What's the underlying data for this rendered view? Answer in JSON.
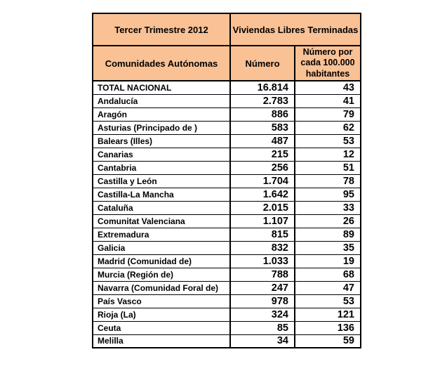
{
  "table": {
    "header": {
      "period": "Tercer Trimestre 2012",
      "measure": "Viviendas Libres Terminadas",
      "col_region": "Comunidades Autónomas",
      "col_numero": "Número",
      "col_per100k": "Número por cada 100.000 habitantes"
    },
    "colors": {
      "header_bg": "#FAC195",
      "region_bg": "#CCFFFF",
      "cell_bg": "#FFFFFF",
      "border": "#000000",
      "text": "#000000"
    },
    "rows": [
      {
        "region": "TOTAL NACIONAL",
        "numero": "16.814",
        "per100k": "43"
      },
      {
        "region": "Andalucía",
        "numero": "2.783",
        "per100k": "41"
      },
      {
        "region": "Aragón",
        "numero": "886",
        "per100k": "79"
      },
      {
        "region": "Asturias (Principado de )",
        "numero": "583",
        "per100k": "62"
      },
      {
        "region": "Balears (Illes)",
        "numero": "487",
        "per100k": "53"
      },
      {
        "region": "Canarias",
        "numero": "215",
        "per100k": "12"
      },
      {
        "region": "Cantabria",
        "numero": "256",
        "per100k": "51"
      },
      {
        "region": "Castilla y León",
        "numero": "1.704",
        "per100k": "78"
      },
      {
        "region": "Castilla-La Mancha",
        "numero": "1.642",
        "per100k": "95"
      },
      {
        "region": "Cataluña",
        "numero": "2.015",
        "per100k": "33"
      },
      {
        "region": "Comunitat Valenciana",
        "numero": "1.107",
        "per100k": "26"
      },
      {
        "region": "Extremadura",
        "numero": "815",
        "per100k": "89"
      },
      {
        "region": "Galicia",
        "numero": "832",
        "per100k": "35"
      },
      {
        "region": "Madrid (Comunidad de)",
        "numero": "1.033",
        "per100k": "19"
      },
      {
        "region": "Murcia (Región de)",
        "numero": "788",
        "per100k": "68"
      },
      {
        "region": "Navarra (Comunidad Foral de)",
        "numero": "247",
        "per100k": "47"
      },
      {
        "region": "País Vasco",
        "numero": "978",
        "per100k": "53"
      },
      {
        "region": "Rioja (La)",
        "numero": "324",
        "per100k": "121"
      },
      {
        "region": "Ceuta",
        "numero": "85",
        "per100k": "136"
      },
      {
        "region": "Melilla",
        "numero": "34",
        "per100k": "59"
      }
    ]
  },
  "chart_data": {
    "type": "table",
    "title": "Tercer Trimestre 2012 — Viviendas Libres Terminadas",
    "columns": [
      "Comunidades Autónomas",
      "Número",
      "Número por cada 100.000 habitantes"
    ],
    "categories": [
      "TOTAL NACIONAL",
      "Andalucía",
      "Aragón",
      "Asturias (Principado de )",
      "Balears (Illes)",
      "Canarias",
      "Cantabria",
      "Castilla y León",
      "Castilla-La Mancha",
      "Cataluña",
      "Comunitat Valenciana",
      "Extremadura",
      "Galicia",
      "Madrid (Comunidad de)",
      "Murcia (Región de)",
      "Navarra (Comunidad Foral de)",
      "País Vasco",
      "Rioja (La)",
      "Ceuta",
      "Melilla"
    ],
    "series": [
      {
        "name": "Número",
        "values": [
          16814,
          2783,
          886,
          583,
          487,
          215,
          256,
          1704,
          1642,
          2015,
          1107,
          815,
          832,
          1033,
          788,
          247,
          978,
          324,
          85,
          34
        ]
      },
      {
        "name": "Número por cada 100.000 habitantes",
        "values": [
          43,
          41,
          79,
          62,
          53,
          12,
          51,
          78,
          95,
          33,
          26,
          89,
          35,
          19,
          68,
          47,
          53,
          121,
          136,
          59
        ]
      }
    ]
  }
}
